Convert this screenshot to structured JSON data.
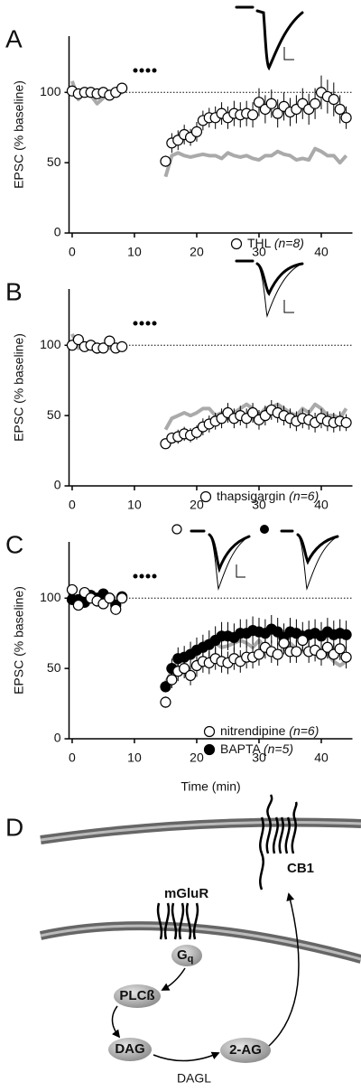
{
  "chart_data": [
    {
      "type": "scatter",
      "label": "A",
      "ylabel": "EPSC (% baseline)",
      "x": [
        0,
        1,
        2,
        3,
        4,
        5,
        6,
        7,
        8,
        9,
        10,
        11,
        12,
        13,
        14,
        15,
        16,
        17,
        18,
        19,
        20,
        21,
        22,
        23,
        24,
        25,
        26,
        27,
        28,
        29,
        30,
        31,
        32,
        33,
        34,
        35,
        36,
        37,
        38,
        39,
        40,
        41,
        42,
        43,
        44
      ],
      "xlim": [
        -0.5,
        45
      ],
      "xticks": [
        0,
        10,
        20,
        30,
        40
      ],
      "ylim": [
        0,
        140
      ],
      "yticks": [
        0,
        50,
        100
      ],
      "hline": 100,
      "series": [
        {
          "mark": "line",
          "color": "#aaaaaa",
          "values": [
            108,
            95,
            100,
            98,
            92,
            96,
            100,
            98,
            100,
            null,
            null,
            null,
            null,
            null,
            null,
            40,
            55,
            57,
            55,
            54,
            55,
            56,
            55,
            55,
            53,
            57,
            55,
            54,
            55,
            53,
            52,
            55,
            55,
            58,
            56,
            55,
            52,
            53,
            52,
            60,
            58,
            55,
            55,
            50,
            55
          ]
        },
        {
          "mark": "circle",
          "name": "THL",
          "annotation": "(n=8)",
          "color": "#000000",
          "fill": "#ffffff",
          "values": [
            101,
            99,
            100,
            100,
            99,
            100,
            98,
            100,
            103,
            null,
            null,
            null,
            null,
            null,
            null,
            51,
            64,
            66,
            70,
            68,
            72,
            80,
            82,
            82,
            85,
            82,
            85,
            84,
            85,
            84,
            93,
            88,
            92,
            85,
            90,
            86,
            88,
            92,
            88,
            92,
            100,
            97,
            95,
            88,
            82
          ],
          "errors": [
            3,
            3,
            3,
            3,
            3,
            3,
            3,
            3,
            3,
            null,
            null,
            null,
            null,
            null,
            null,
            4,
            7,
            7,
            7,
            6,
            7,
            7,
            7,
            8,
            8,
            8,
            9,
            9,
            9,
            9,
            10,
            10,
            10,
            10,
            10,
            10,
            10,
            11,
            11,
            11,
            12,
            12,
            12,
            10,
            8
          ]
        }
      ]
    },
    {
      "type": "scatter",
      "label": "B",
      "ylabel": "EPSC (% baseline)",
      "x": [
        0,
        1,
        2,
        3,
        4,
        5,
        6,
        7,
        8,
        9,
        10,
        11,
        12,
        13,
        14,
        15,
        16,
        17,
        18,
        19,
        20,
        21,
        22,
        23,
        24,
        25,
        26,
        27,
        28,
        29,
        30,
        31,
        32,
        33,
        34,
        35,
        36,
        37,
        38,
        39,
        40,
        41,
        42,
        43,
        44
      ],
      "xlim": [
        -0.5,
        45
      ],
      "xticks": [
        0,
        10,
        20,
        30,
        40
      ],
      "ylim": [
        0,
        140
      ],
      "yticks": [
        0,
        50,
        100
      ],
      "hline": 100,
      "series": [
        {
          "mark": "line",
          "color": "#aaaaaa",
          "values": [
            108,
            98,
            100,
            98,
            95,
            100,
            98,
            96,
            100,
            null,
            null,
            null,
            null,
            null,
            null,
            40,
            48,
            50,
            52,
            50,
            52,
            55,
            55,
            50,
            52,
            48,
            52,
            55,
            58,
            55,
            50,
            55,
            56,
            58,
            55,
            52,
            50,
            55,
            52,
            58,
            55,
            50,
            50,
            48,
            55
          ]
        },
        {
          "mark": "circle",
          "name": "thapsigargin",
          "annotation": "(n=6)",
          "color": "#000000",
          "fill": "#ffffff",
          "values": [
            100,
            104,
            99,
            100,
            98,
            98,
            103,
            98,
            99,
            null,
            null,
            null,
            null,
            null,
            null,
            30,
            34,
            35,
            37,
            36,
            38,
            42,
            44,
            46,
            48,
            52,
            48,
            50,
            48,
            52,
            47,
            50,
            54,
            52,
            50,
            48,
            46,
            48,
            47,
            45,
            48,
            46,
            45,
            46,
            45
          ],
          "errors": [
            3,
            3,
            3,
            3,
            3,
            3,
            3,
            3,
            3,
            null,
            null,
            null,
            null,
            null,
            null,
            3,
            4,
            5,
            5,
            5,
            5,
            6,
            6,
            6,
            7,
            7,
            7,
            7,
            7,
            7,
            7,
            7,
            7,
            7,
            7,
            7,
            7,
            7,
            7,
            7,
            7,
            7,
            7,
            7,
            6
          ]
        }
      ]
    },
    {
      "type": "scatter",
      "label": "C",
      "ylabel": "EPSC (% baseline)",
      "xlabel": "Time (min)",
      "x": [
        0,
        1,
        2,
        3,
        4,
        5,
        6,
        7,
        8,
        9,
        10,
        11,
        12,
        13,
        14,
        15,
        16,
        17,
        18,
        19,
        20,
        21,
        22,
        23,
        24,
        25,
        26,
        27,
        28,
        29,
        30,
        31,
        32,
        33,
        34,
        35,
        36,
        37,
        38,
        39,
        40,
        41,
        42,
        43,
        44
      ],
      "xlim": [
        -0.5,
        45
      ],
      "xticks": [
        0,
        10,
        20,
        30,
        40
      ],
      "ylim": [
        0,
        140
      ],
      "yticks": [
        0,
        50,
        100
      ],
      "hline": 100,
      "series": [
        {
          "mark": "line",
          "color": "#aaaaaa",
          "values": [
            100,
            100,
            98,
            100,
            95,
            100,
            98,
            100,
            100,
            null,
            null,
            null,
            null,
            null,
            null,
            40,
            48,
            55,
            60,
            62,
            65,
            68,
            70,
            68,
            65,
            66,
            68,
            70,
            68,
            65,
            70,
            65,
            62,
            60,
            65,
            68,
            64,
            62,
            60,
            65,
            62,
            60,
            55,
            52,
            55
          ]
        },
        {
          "mark": "circle",
          "name": "BAPTA",
          "annotation": "(n=5)",
          "color": "#000000",
          "fill": "#000000",
          "values": [
            99,
            99,
            97,
            102,
            100,
            103,
            100,
            95,
            101,
            null,
            null,
            null,
            null,
            null,
            null,
            37,
            50,
            57,
            58,
            60,
            63,
            65,
            67,
            70,
            73,
            73,
            72,
            75,
            75,
            77,
            76,
            75,
            78,
            76,
            72,
            76,
            75,
            73,
            74,
            75,
            73,
            76,
            74,
            75,
            74
          ],
          "errors": [
            3,
            3,
            3,
            3,
            3,
            3,
            3,
            3,
            3,
            null,
            null,
            null,
            null,
            null,
            null,
            4,
            7,
            8,
            8,
            9,
            9,
            9,
            10,
            10,
            10,
            10,
            10,
            10,
            10,
            10,
            10,
            10,
            10,
            10,
            10,
            10,
            10,
            10,
            10,
            10,
            10,
            10,
            10,
            10,
            10
          ]
        },
        {
          "mark": "circle",
          "name": "nitrendipine",
          "annotation": "(n=6)",
          "color": "#000000",
          "fill": "#ffffff",
          "values": [
            106,
            95,
            104,
            100,
            98,
            96,
            100,
            92,
            100,
            null,
            null,
            null,
            null,
            null,
            null,
            26,
            42,
            48,
            50,
            45,
            52,
            55,
            54,
            57,
            55,
            54,
            57,
            55,
            58,
            58,
            60,
            65,
            62,
            60,
            68,
            62,
            62,
            70,
            62,
            63,
            60,
            65,
            60,
            64,
            58
          ],
          "errors": [
            3,
            3,
            3,
            3,
            3,
            3,
            3,
            3,
            3,
            null,
            null,
            null,
            null,
            null,
            null,
            4,
            6,
            7,
            7,
            7,
            8,
            8,
            8,
            8,
            8,
            8,
            8,
            8,
            8,
            8,
            8,
            8,
            8,
            8,
            8,
            8,
            8,
            8,
            8,
            8,
            8,
            8,
            8,
            8,
            8
          ]
        }
      ]
    }
  ],
  "diagram": {
    "label": "D",
    "receptors": [
      "mGluR",
      "CB1"
    ],
    "nodes": [
      {
        "label": "G",
        "subscript": "q"
      },
      {
        "label": "PLCß"
      },
      {
        "label": "DAG"
      },
      {
        "label": "2-AG"
      }
    ],
    "enzyme": "DAGL"
  }
}
